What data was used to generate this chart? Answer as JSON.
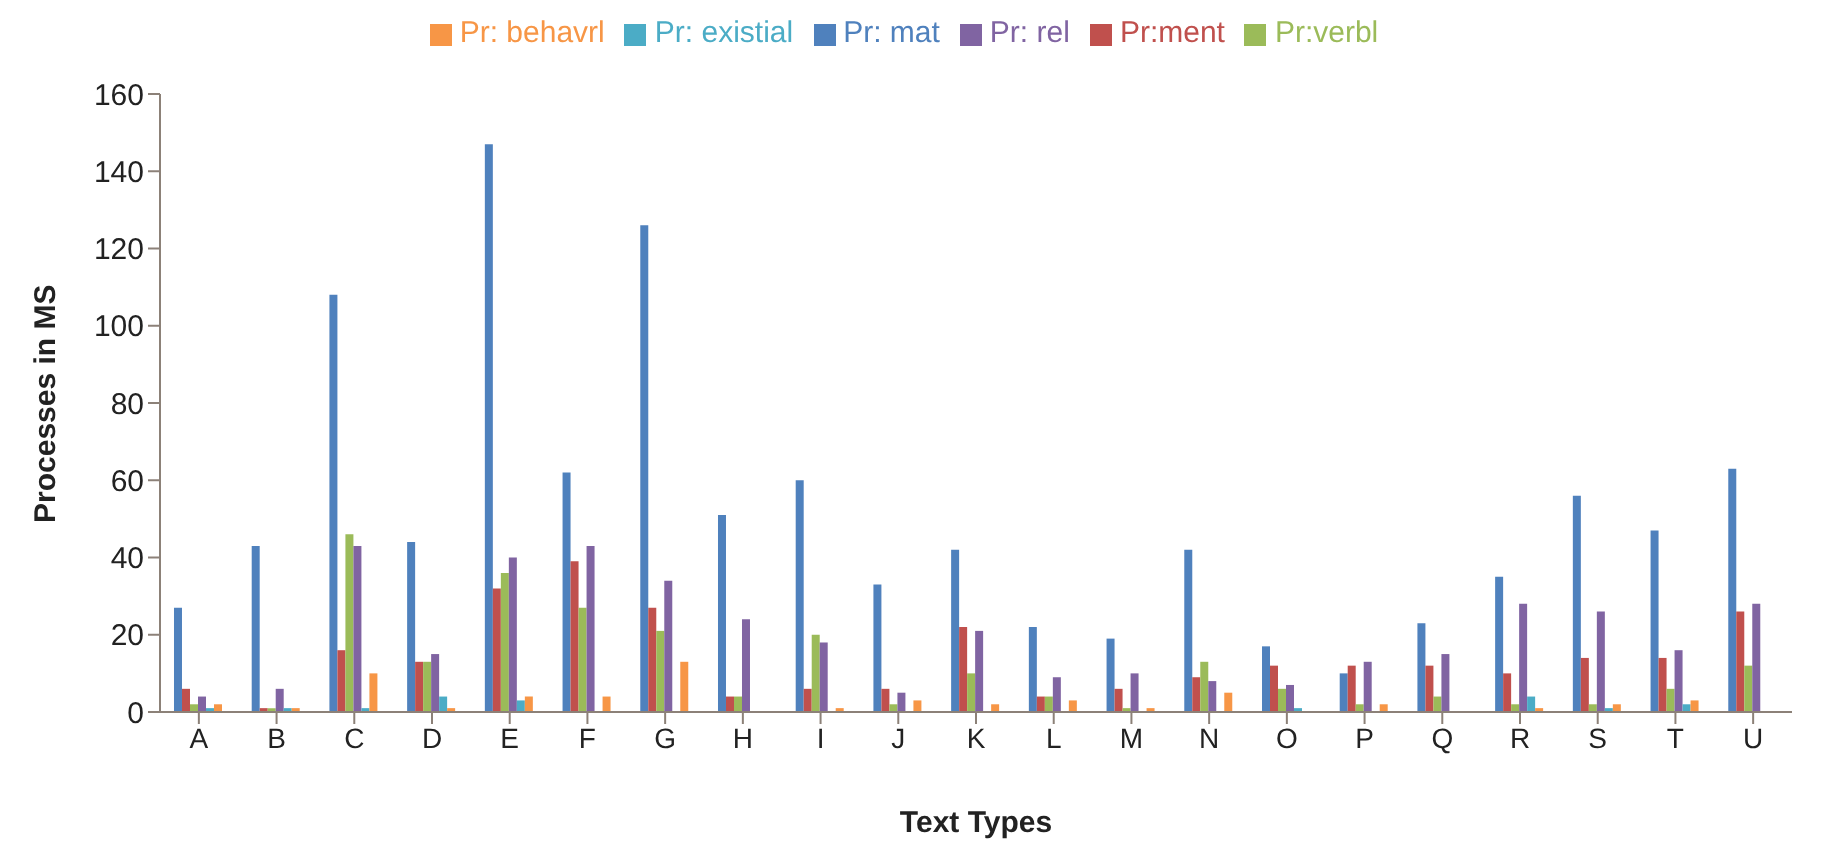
{
  "chart_data": {
    "type": "bar",
    "xlabel": "Text Types",
    "ylabel": "Processes in MS",
    "categories": [
      "A",
      "B",
      "C",
      "D",
      "E",
      "F",
      "G",
      "H",
      "I",
      "J",
      "K",
      "L",
      "M",
      "N",
      "O",
      "P",
      "Q",
      "R",
      "S",
      "T",
      "U"
    ],
    "series": [
      {
        "name": "Pr: mat",
        "color": "#4f81bd",
        "values": [
          27,
          43,
          108,
          44,
          147,
          62,
          126,
          51,
          60,
          33,
          42,
          22,
          19,
          42,
          17,
          10,
          23,
          35,
          56,
          47,
          63
        ]
      },
      {
        "name": "Pr:ment",
        "color": "#c0504d",
        "values": [
          6,
          1,
          16,
          13,
          32,
          39,
          27,
          4,
          6,
          6,
          22,
          4,
          6,
          9,
          12,
          12,
          12,
          10,
          14,
          14,
          26
        ]
      },
      {
        "name": "Pr:verbl",
        "color": "#9bbb59",
        "values": [
          2,
          1,
          46,
          13,
          36,
          27,
          21,
          4,
          20,
          2,
          10,
          4,
          1,
          13,
          6,
          2,
          4,
          2,
          2,
          6,
          12
        ]
      },
      {
        "name": "Pr: rel",
        "color": "#8064a2",
        "values": [
          4,
          6,
          43,
          15,
          40,
          43,
          34,
          24,
          18,
          5,
          21,
          9,
          10,
          8,
          7,
          13,
          15,
          28,
          26,
          16,
          28
        ]
      },
      {
        "name": "Pr: existial",
        "color": "#4bacc6",
        "values": [
          1,
          1,
          1,
          4,
          3,
          0,
          0,
          0,
          0,
          0,
          0,
          0,
          0,
          0,
          1,
          0,
          0,
          4,
          1,
          2,
          0
        ]
      },
      {
        "name": "Pr: behavrl",
        "color": "#f79646",
        "values": [
          2,
          1,
          10,
          1,
          4,
          4,
          13,
          0,
          1,
          3,
          2,
          3,
          1,
          5,
          0,
          2,
          0,
          1,
          2,
          3,
          0
        ]
      }
    ],
    "ylim": [
      0,
      160
    ],
    "yticks": [
      0,
      20,
      40,
      60,
      80,
      100,
      120,
      140,
      160
    ],
    "grid": false,
    "legend": "top"
  }
}
